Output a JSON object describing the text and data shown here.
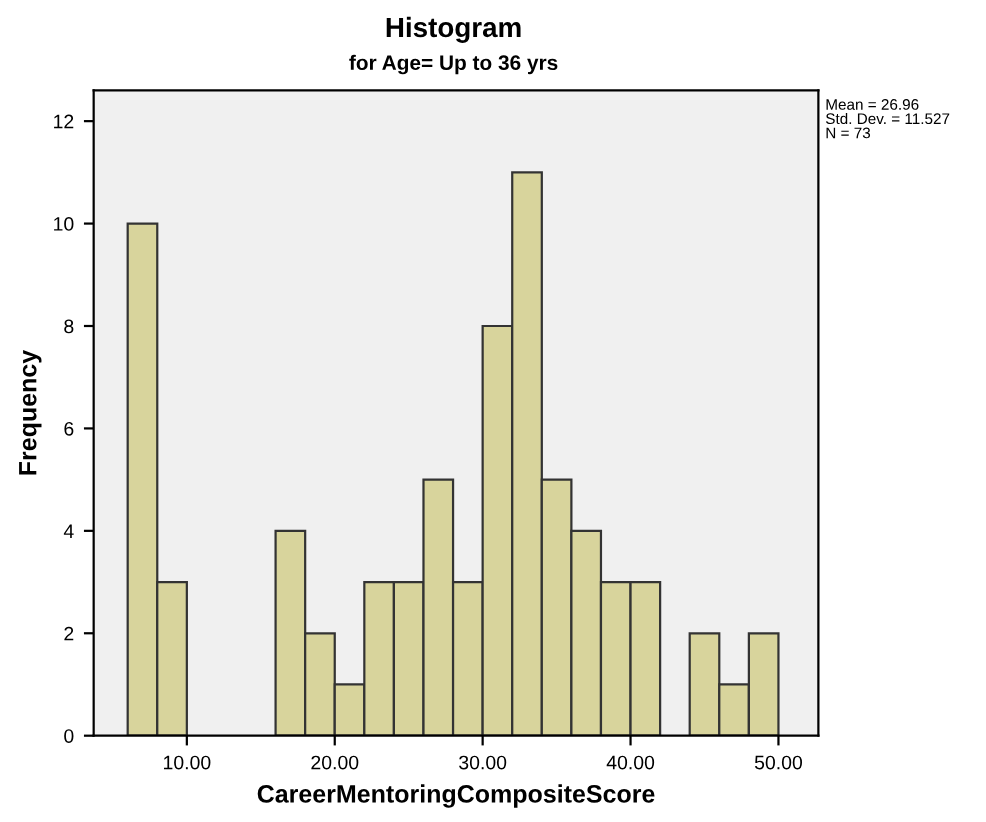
{
  "chart_data": {
    "type": "histogram",
    "title": "Histogram",
    "subtitle": "for Age= Up to 36 yrs",
    "xlabel": "CareerMentoringCompositeScore",
    "ylabel": "Frequency",
    "bins": [
      6,
      8,
      10,
      12,
      14,
      16,
      18,
      20,
      22,
      24,
      26,
      28,
      30,
      32,
      34,
      36,
      38,
      40,
      42,
      44,
      46,
      48,
      50
    ],
    "values": [
      10,
      3,
      0,
      0,
      0,
      4,
      2,
      1,
      3,
      3,
      5,
      3,
      8,
      11,
      5,
      4,
      3,
      3,
      0,
      2,
      1,
      2
    ],
    "color": "#d8d49c",
    "xlim": [
      3.7,
      52.7
    ],
    "xticks": [
      {
        "value": 10,
        "label": "10.00"
      },
      {
        "value": 20,
        "label": "20.00"
      },
      {
        "value": 30,
        "label": "30.00"
      },
      {
        "value": 40,
        "label": "40.00"
      },
      {
        "value": 50,
        "label": "50.00"
      }
    ],
    "ylim": [
      0,
      12.6
    ],
    "yticks": [
      0,
      2,
      4,
      6,
      8,
      10,
      12
    ],
    "grid": false,
    "annotations": [
      "Mean = 26.96\nStd. Dev. = 11.527\nN = 73"
    ]
  }
}
